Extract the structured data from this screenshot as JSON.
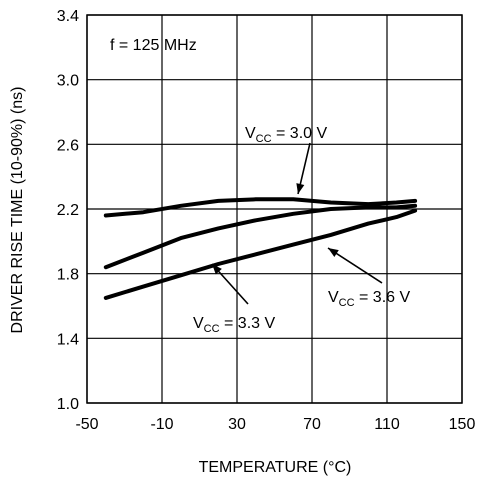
{
  "chart_data": {
    "type": "line",
    "title": "",
    "xlabel": "TEMPERATURE (°C)",
    "ylabel": "DRIVER RISE TIME (10-90%) (ns)",
    "xlim": [
      -50,
      150
    ],
    "ylim": [
      1.0,
      3.4
    ],
    "xticks": [
      "-50",
      "-10",
      "30",
      "70",
      "110",
      "150"
    ],
    "yticks": [
      "1.0",
      "1.4",
      "1.8",
      "2.2",
      "2.6",
      "3.0",
      "3.4"
    ],
    "grid": true,
    "condition_label": "f = 125 MHz",
    "series": [
      {
        "label_main": "V",
        "label_sub": "CC",
        "label_rest": " = 3.0 V",
        "x": [
          -40,
          -20,
          0,
          20,
          40,
          60,
          80,
          100,
          115,
          125
        ],
        "y": [
          2.16,
          2.18,
          2.22,
          2.25,
          2.26,
          2.26,
          2.24,
          2.23,
          2.24,
          2.25
        ]
      },
      {
        "label_main": "V",
        "label_sub": "CC",
        "label_rest": " = 3.3 V",
        "x": [
          -40,
          -20,
          0,
          20,
          40,
          60,
          80,
          100,
          115,
          125
        ],
        "y": [
          1.84,
          1.93,
          2.02,
          2.08,
          2.13,
          2.17,
          2.2,
          2.21,
          2.21,
          2.22
        ]
      },
      {
        "label_main": "V",
        "label_sub": "CC",
        "label_rest": " = 3.6 V",
        "x": [
          -40,
          -20,
          0,
          20,
          40,
          60,
          80,
          100,
          115,
          125
        ],
        "y": [
          1.65,
          1.72,
          1.79,
          1.86,
          1.92,
          1.98,
          2.04,
          2.11,
          2.15,
          2.19
        ]
      }
    ]
  }
}
